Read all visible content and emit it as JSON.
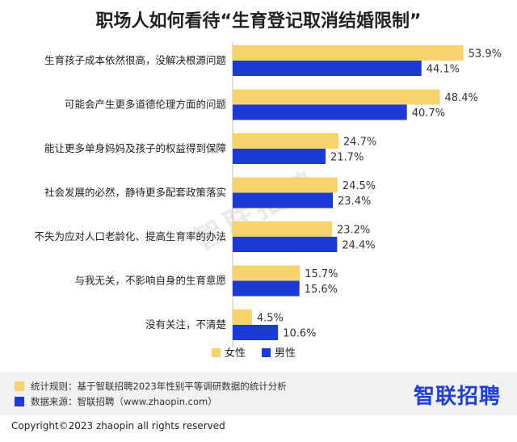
{
  "title": "职场人如何看待“生育登记取消结婚限制”",
  "chart_data": {
    "type": "bar",
    "orientation": "horizontal",
    "categories": [
      "生育孩子成本依然很高，没解决根源问题",
      "可能会产生更多道德伦理方面的问题",
      "能让更多单身妈妈及孩子的权益得到保障",
      "社会发展的必然，静待更多配套政策落实",
      "不失为应对人口老龄化、提高生育率的办法",
      "与我无关，不影响自身的生育意愿",
      "没有关注，不清楚"
    ],
    "series": [
      {
        "name": "女性",
        "color": "#f7d36b",
        "values": [
          53.9,
          48.4,
          24.7,
          24.5,
          23.2,
          15.7,
          4.5
        ]
      },
      {
        "name": "男性",
        "color": "#1c3bd6",
        "values": [
          44.1,
          40.7,
          21.7,
          23.4,
          24.4,
          15.6,
          10.6
        ]
      }
    ],
    "value_suffix": "%",
    "xlim": [
      0,
      60
    ],
    "grid": false,
    "legend_position": "bottom-center"
  },
  "watermark": "智联招聘",
  "notes": [
    {
      "text": "统计规则：基于智联招聘2023年性别平等调研数据的统计分析",
      "color": "#f7d36b"
    },
    {
      "text": "数据来源：智联招聘（www.zhaopin.com）",
      "color": "#1c3bd6"
    }
  ],
  "logo": "智联招聘",
  "copyright": "Copyright©2023 zhaopin all rights reserved"
}
